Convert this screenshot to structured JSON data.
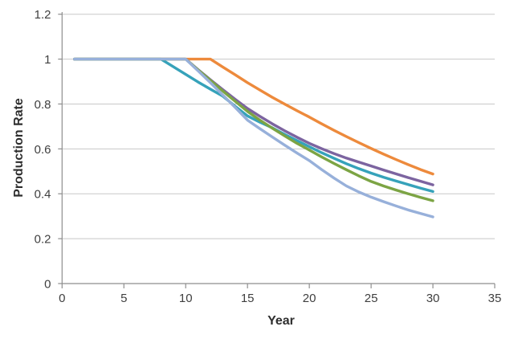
{
  "chart_data": {
    "type": "line",
    "title": "",
    "xlabel": "Year",
    "ylabel": "Production Rate",
    "xlim": [
      0,
      35
    ],
    "ylim": [
      0,
      1.2
    ],
    "xticks": [
      0,
      5,
      10,
      15,
      20,
      25,
      30,
      35
    ],
    "xtick_labels": [
      "0",
      "5",
      "10",
      "15",
      "20",
      "25",
      "30",
      "35"
    ],
    "yticks": [
      0,
      0.2,
      0.4,
      0.6,
      0.8,
      1.0,
      1.2
    ],
    "ytick_labels": [
      "0",
      "0.2",
      "0.4",
      "0.6",
      "0.8",
      "1",
      "1.2"
    ],
    "grid": "horizontal",
    "legend": "none",
    "x": [
      1,
      2,
      3,
      4,
      5,
      6,
      7,
      8,
      9,
      10,
      11,
      12,
      13,
      14,
      15,
      16,
      17,
      18,
      19,
      20,
      21,
      22,
      23,
      24,
      25,
      26,
      27,
      28,
      29,
      30
    ],
    "series": [
      {
        "name": "orange-curve",
        "color": "#ED8A3C",
        "decline_start_year": 12,
        "values": [
          1,
          1,
          1,
          1,
          1,
          1,
          1,
          1,
          1,
          1,
          1,
          1,
          0.965,
          0.93,
          0.895,
          0.862,
          0.83,
          0.8,
          0.77,
          0.742,
          0.712,
          0.683,
          0.655,
          0.628,
          0.602,
          0.577,
          0.553,
          0.53,
          0.508,
          0.488
        ]
      },
      {
        "name": "purple-curve",
        "color": "#7C64A0",
        "decline_start_year": 10,
        "values": [
          1,
          1,
          1,
          1,
          1,
          1,
          1,
          1,
          1,
          1,
          0.953,
          0.908,
          0.864,
          0.821,
          0.78,
          0.745,
          0.712,
          0.681,
          0.652,
          0.625,
          0.601,
          0.579,
          0.559,
          0.541,
          0.524,
          0.506,
          0.489,
          0.472,
          0.456,
          0.44
        ]
      },
      {
        "name": "teal-curve",
        "color": "#36A2BA",
        "decline_start_year": 8,
        "values": [
          1,
          1,
          1,
          1,
          1,
          1,
          1,
          1,
          0.966,
          0.932,
          0.898,
          0.866,
          0.835,
          0.79,
          0.747,
          0.719,
          0.694,
          0.665,
          0.637,
          0.61,
          0.583,
          0.558,
          0.534,
          0.512,
          0.492,
          0.474,
          0.457,
          0.441,
          0.425,
          0.41
        ]
      },
      {
        "name": "green-curve",
        "color": "#7CA444",
        "decline_start_year": 10,
        "values": [
          1,
          1,
          1,
          1,
          1,
          1,
          1,
          1,
          1,
          1,
          0.952,
          0.905,
          0.858,
          0.812,
          0.767,
          0.728,
          0.692,
          0.658,
          0.625,
          0.595,
          0.564,
          0.535,
          0.507,
          0.48,
          0.455,
          0.435,
          0.417,
          0.4,
          0.384,
          0.369
        ]
      },
      {
        "name": "lightblue-curve",
        "color": "#97B0DA",
        "decline_start_year": 10,
        "values": [
          1,
          1,
          1,
          1,
          1,
          1,
          1,
          1,
          1,
          1,
          0.948,
          0.895,
          0.84,
          0.785,
          0.728,
          0.69,
          0.653,
          0.617,
          0.582,
          0.548,
          0.508,
          0.47,
          0.435,
          0.408,
          0.385,
          0.365,
          0.346,
          0.328,
          0.312,
          0.297
        ]
      }
    ]
  },
  "style": {
    "background": "#ffffff",
    "gridline_color": "#C8C8C8",
    "axis_color": "#8E8E8E",
    "tick_text_color": "#3F3F3F",
    "title_text_color": "#2E2E2E",
    "line_width": 3.4
  }
}
